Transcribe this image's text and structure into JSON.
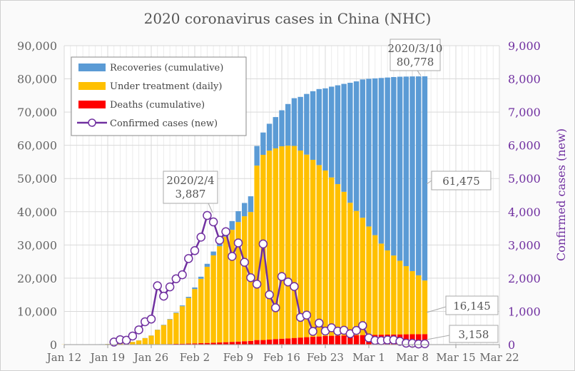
{
  "chart_data": {
    "type": "bar",
    "title": "2020 coronavirus cases in China (NHC)",
    "y2label": "Confirmed cases (new)",
    "ylim": [
      0,
      90000
    ],
    "y2lim": [
      0,
      9000
    ],
    "yticks": [
      "0",
      "10,000",
      "20,000",
      "30,000",
      "40,000",
      "50,000",
      "60,000",
      "70,000",
      "80,000",
      "90,000"
    ],
    "y2ticks": [
      "0",
      "1,000",
      "2,000",
      "3,000",
      "4,000",
      "5,000",
      "6,000",
      "7,000",
      "8,000",
      "9,000"
    ],
    "xticks": [
      "Jan 12",
      "Jan 19",
      "Jan 26",
      "Feb 2",
      "Feb 9",
      "Feb 16",
      "Feb 23",
      "Mar 1",
      "Mar 8",
      "Mar 15",
      "Mar 22"
    ],
    "xrange": [
      "2020-01-12",
      "2020-03-22"
    ],
    "grid": true,
    "legend_position": "top-left",
    "colors": {
      "recoveries": "#5b9bd5",
      "under_treatment": "#ffc000",
      "deaths": "#ff0000",
      "confirmed": "#7030a0"
    },
    "dates_start": "2020-01-12",
    "series": [
      {
        "name": "Deaths (cumulative)",
        "key": "deaths",
        "values": [
          1,
          1,
          1,
          1,
          2,
          2,
          3,
          4,
          6,
          9,
          17,
          25,
          41,
          56,
          80,
          106,
          132,
          170,
          213,
          259,
          304,
          361,
          425,
          490,
          563,
          636,
          722,
          811,
          908,
          1016,
          1113,
          1367,
          1380,
          1523,
          1665,
          1770,
          1868,
          2004,
          2118,
          2236,
          2345,
          2442,
          2592,
          2663,
          2715,
          2744,
          2788,
          2835,
          2870,
          2912,
          2943,
          2981,
          3012,
          3042,
          3070,
          3097,
          3119,
          3136,
          3158
        ]
      },
      {
        "name": "Under treatment (daily)",
        "key": "under_treatment",
        "values": [
          40,
          40,
          40,
          40,
          38,
          48,
          101,
          169,
          260,
          406,
          526,
          771,
          1208,
          1870,
          2613,
          4349,
          5739,
          7417,
          9308,
          11289,
          13748,
          16369,
          19381,
          22942,
          26302,
          28985,
          31774,
          33738,
          35982,
          37626,
          38800,
          52526,
          55748,
          56873,
          57416,
          57934,
          58016,
          57805,
          56303,
          54965,
          53284,
          51606,
          49824,
          47672,
          45604,
          43258,
          39919,
          37414,
          35329,
          32652,
          30004,
          27433,
          25352,
          23784,
          22177,
          20533,
          19016,
          17721,
          16145
        ]
      },
      {
        "name": "Recoveries (cumulative)",
        "key": "recoveries",
        "values": [
          0,
          0,
          0,
          0,
          5,
          12,
          17,
          25,
          25,
          25,
          28,
          34,
          38,
          49,
          51,
          60,
          103,
          124,
          171,
          243,
          328,
          475,
          632,
          892,
          1153,
          1540,
          2050,
          2649,
          3281,
          3996,
          4740,
          5911,
          6723,
          8096,
          9419,
          10844,
          12552,
          14376,
          16155,
          18264,
          20659,
          22888,
          24734,
          27323,
          29745,
          32495,
          36117,
          39002,
          41625,
          44462,
          47204,
          49856,
          52045,
          53726,
          55404,
          57065,
          58600,
          59897,
          61475
        ]
      },
      {
        "name": "Confirmed cases (new)",
        "key": "confirmed",
        "axis": "right",
        "type": "line",
        "dates_start": "2020-01-20",
        "values": [
          77,
          149,
          131,
          259,
          444,
          688,
          769,
          1771,
          1459,
          1737,
          1982,
          2102,
          2590,
          2829,
          3235,
          3887,
          3694,
          3143,
          3399,
          2656,
          3062,
          2478,
          2015,
          1820,
          3030,
          1500,
          1110,
          2048,
          1886,
          1749,
          820,
          889,
          397,
          648,
          409,
          508,
          406,
          433,
          327,
          427,
          573,
          202,
          125,
          119,
          139,
          143,
          99,
          44,
          40,
          19,
          24
        ]
      }
    ],
    "legend": [
      "Recoveries (cumulative)",
      "Under treatment (daily)",
      "Deaths (cumulative)",
      "Confirmed cases (new)"
    ],
    "annotations": [
      {
        "line1": "2020/3/10",
        "line2": "80,778"
      },
      {
        "line1": "2020/2/4",
        "line2": "3,887"
      },
      {
        "line1": "61,475"
      },
      {
        "line1": "16,145"
      },
      {
        "line1": "3,158"
      }
    ]
  }
}
